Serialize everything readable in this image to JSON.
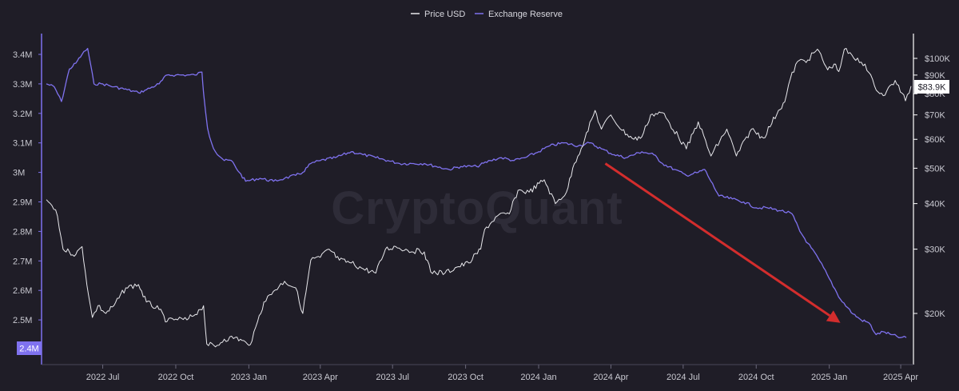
{
  "watermark": "CryptoQuant",
  "colors": {
    "background": "#1f1d27",
    "price_line": "#e8e8ec",
    "reserve_line": "#7f72ef",
    "arrow": "#d32d2d",
    "axis_left": "#7f72ef",
    "axis_right": "#ffffff"
  },
  "legend": {
    "price_label": "Price USD",
    "reserve_label": "Exchange Reserve"
  },
  "badges": {
    "reserve_current": "2.4M",
    "price_current": "$83.9K"
  },
  "chart_data": {
    "type": "line",
    "legend_position": "top-center",
    "grid": false,
    "x_ticks": [
      "2022 Jul",
      "2022 Oct",
      "2023 Jan",
      "2023 Apr",
      "2023 Jul",
      "2023 Oct",
      "2024 Jan",
      "2024 Apr",
      "2024 Jul",
      "2024 Oct",
      "2025 Jan",
      "2025 Apr"
    ],
    "x_range": [
      "2022-04-21",
      "2025-04-14"
    ],
    "y_left": {
      "label": "",
      "ticks": [
        "3.4M",
        "3.3M",
        "3.2M",
        "3.1M",
        "3M",
        "2.9M",
        "2.8M",
        "2.7M",
        "2.6M",
        "2.5M"
      ],
      "range": [
        2.4,
        3.45
      ]
    },
    "y_right": {
      "label": "",
      "scale": "log",
      "ticks": [
        "$100K",
        "$90K",
        "$80K",
        "$70K",
        "$60K",
        "$50K",
        "$40K",
        "$30K",
        "$20K"
      ],
      "range": [
        14000,
        112000
      ]
    },
    "series": [
      {
        "name": "Exchange Reserve",
        "axis": "left",
        "unit": "M BTC",
        "points": [
          [
            "2022-04-21",
            3.3
          ],
          [
            "2022-05-01",
            3.29
          ],
          [
            "2022-05-10",
            3.24
          ],
          [
            "2022-05-20",
            3.35
          ],
          [
            "2022-05-28",
            3.37
          ],
          [
            "2022-06-05",
            3.4
          ],
          [
            "2022-06-12",
            3.42
          ],
          [
            "2022-06-20",
            3.3
          ],
          [
            "2022-07-01",
            3.3
          ],
          [
            "2022-07-15",
            3.29
          ],
          [
            "2022-08-01",
            3.28
          ],
          [
            "2022-08-15",
            3.27
          ],
          [
            "2022-08-25",
            3.28
          ],
          [
            "2022-09-10",
            3.3
          ],
          [
            "2022-09-20",
            3.33
          ],
          [
            "2022-10-01",
            3.33
          ],
          [
            "2022-10-15",
            3.33
          ],
          [
            "2022-10-25",
            3.33
          ],
          [
            "2022-11-03",
            3.34
          ],
          [
            "2022-11-05",
            3.27
          ],
          [
            "2022-11-10",
            3.15
          ],
          [
            "2022-11-15",
            3.1
          ],
          [
            "2022-11-20",
            3.07
          ],
          [
            "2022-12-01",
            3.04
          ],
          [
            "2022-12-10",
            3.04
          ],
          [
            "2022-12-20",
            3.0
          ],
          [
            "2022-12-28",
            2.97
          ],
          [
            "2023-01-15",
            2.98
          ],
          [
            "2023-02-01",
            2.97
          ],
          [
            "2023-02-15",
            2.98
          ],
          [
            "2023-03-01",
            2.99
          ],
          [
            "2023-03-10",
            3.0
          ],
          [
            "2023-03-20",
            3.03
          ],
          [
            "2023-04-01",
            3.04
          ],
          [
            "2023-04-20",
            3.05
          ],
          [
            "2023-05-10",
            3.07
          ],
          [
            "2023-05-25",
            3.06
          ],
          [
            "2023-06-10",
            3.05
          ],
          [
            "2023-06-25",
            3.04
          ],
          [
            "2023-07-10",
            3.03
          ],
          [
            "2023-07-25",
            3.03
          ],
          [
            "2023-08-10",
            3.03
          ],
          [
            "2023-08-25",
            3.02
          ],
          [
            "2023-09-10",
            3.01
          ],
          [
            "2023-09-25",
            3.02
          ],
          [
            "2023-10-15",
            3.02
          ],
          [
            "2023-11-01",
            3.04
          ],
          [
            "2023-11-15",
            3.05
          ],
          [
            "2023-12-01",
            3.04
          ],
          [
            "2023-12-15",
            3.05
          ],
          [
            "2024-01-01",
            3.07
          ],
          [
            "2024-01-15",
            3.09
          ],
          [
            "2024-02-01",
            3.1
          ],
          [
            "2024-02-20",
            3.09
          ],
          [
            "2024-03-05",
            3.1
          ],
          [
            "2024-03-20",
            3.08
          ],
          [
            "2024-04-05",
            3.06
          ],
          [
            "2024-04-20",
            3.05
          ],
          [
            "2024-05-10",
            3.07
          ],
          [
            "2024-05-25",
            3.06
          ],
          [
            "2024-06-05",
            3.03
          ],
          [
            "2024-06-20",
            3.01
          ],
          [
            "2024-07-05",
            2.99
          ],
          [
            "2024-07-20",
            3.0
          ],
          [
            "2024-07-28",
            3.01
          ],
          [
            "2024-08-05",
            2.97
          ],
          [
            "2024-08-15",
            2.92
          ],
          [
            "2024-09-01",
            2.91
          ],
          [
            "2024-09-15",
            2.9
          ],
          [
            "2024-10-01",
            2.88
          ],
          [
            "2024-10-15",
            2.88
          ],
          [
            "2024-11-01",
            2.87
          ],
          [
            "2024-11-15",
            2.86
          ],
          [
            "2024-11-25",
            2.8
          ],
          [
            "2024-12-05",
            2.76
          ],
          [
            "2024-12-20",
            2.7
          ],
          [
            "2025-01-01",
            2.64
          ],
          [
            "2025-01-15",
            2.57
          ],
          [
            "2025-01-31",
            2.52
          ],
          [
            "2025-02-10",
            2.5
          ],
          [
            "2025-02-20",
            2.49
          ],
          [
            "2025-03-01",
            2.45
          ],
          [
            "2025-03-10",
            2.46
          ],
          [
            "2025-03-20",
            2.45
          ],
          [
            "2025-04-01",
            2.44
          ],
          [
            "2025-04-08",
            2.44
          ]
        ]
      },
      {
        "name": "Price USD",
        "axis": "right",
        "unit": "USD",
        "points": [
          [
            "2022-04-21",
            41000
          ],
          [
            "2022-04-28",
            39500
          ],
          [
            "2022-05-05",
            37000
          ],
          [
            "2022-05-12",
            30000
          ],
          [
            "2022-05-20",
            29500
          ],
          [
            "2022-05-28",
            29000
          ],
          [
            "2022-06-05",
            30500
          ],
          [
            "2022-06-13",
            22500
          ],
          [
            "2022-06-18",
            19500
          ],
          [
            "2022-06-25",
            21000
          ],
          [
            "2022-07-05",
            20000
          ],
          [
            "2022-07-15",
            21000
          ],
          [
            "2022-07-30",
            23500
          ],
          [
            "2022-08-15",
            24000
          ],
          [
            "2022-08-25",
            21500
          ],
          [
            "2022-09-10",
            20500
          ],
          [
            "2022-09-20",
            19000
          ],
          [
            "2022-10-01",
            19300
          ],
          [
            "2022-10-15",
            19200
          ],
          [
            "2022-11-01",
            20500
          ],
          [
            "2022-11-05",
            21000
          ],
          [
            "2022-11-09",
            16500
          ],
          [
            "2022-11-20",
            16200
          ],
          [
            "2022-12-01",
            17000
          ],
          [
            "2022-12-15",
            17200
          ],
          [
            "2022-12-30",
            16500
          ],
          [
            "2023-01-05",
            16800
          ],
          [
            "2023-01-12",
            19000
          ],
          [
            "2023-01-20",
            21500
          ],
          [
            "2023-02-01",
            23000
          ],
          [
            "2023-02-15",
            24500
          ],
          [
            "2023-03-01",
            23500
          ],
          [
            "2023-03-10",
            20000
          ],
          [
            "2023-03-20",
            28000
          ],
          [
            "2023-04-01",
            28500
          ],
          [
            "2023-04-12",
            30000
          ],
          [
            "2023-04-25",
            28000
          ],
          [
            "2023-05-10",
            27500
          ],
          [
            "2023-05-25",
            26500
          ],
          [
            "2023-06-10",
            25800
          ],
          [
            "2023-06-22",
            30000
          ],
          [
            "2023-07-05",
            30500
          ],
          [
            "2023-07-20",
            29800
          ],
          [
            "2023-08-10",
            29500
          ],
          [
            "2023-08-18",
            26000
          ],
          [
            "2023-09-05",
            25800
          ],
          [
            "2023-09-20",
            26800
          ],
          [
            "2023-10-05",
            27500
          ],
          [
            "2023-10-20",
            30000
          ],
          [
            "2023-10-25",
            34000
          ],
          [
            "2023-11-10",
            37000
          ],
          [
            "2023-11-25",
            37500
          ],
          [
            "2023-12-06",
            43500
          ],
          [
            "2023-12-20",
            43000
          ],
          [
            "2024-01-08",
            46500
          ],
          [
            "2024-01-22",
            40000
          ],
          [
            "2024-02-05",
            43000
          ],
          [
            "2024-02-15",
            51500
          ],
          [
            "2024-02-28",
            60000
          ],
          [
            "2024-03-12",
            72000
          ],
          [
            "2024-03-20",
            64000
          ],
          [
            "2024-04-01",
            70000
          ],
          [
            "2024-04-15",
            63500
          ],
          [
            "2024-04-30",
            60000
          ],
          [
            "2024-05-10",
            61000
          ],
          [
            "2024-05-21",
            70000
          ],
          [
            "2024-06-05",
            71000
          ],
          [
            "2024-06-25",
            61000
          ],
          [
            "2024-07-05",
            56500
          ],
          [
            "2024-07-20",
            67000
          ],
          [
            "2024-08-05",
            54000
          ],
          [
            "2024-08-25",
            64000
          ],
          [
            "2024-09-06",
            54000
          ],
          [
            "2024-09-25",
            64000
          ],
          [
            "2024-10-10",
            60500
          ],
          [
            "2024-10-29",
            72000
          ],
          [
            "2024-11-06",
            76000
          ],
          [
            "2024-11-13",
            88000
          ],
          [
            "2024-11-22",
            98000
          ],
          [
            "2024-12-05",
            99000
          ],
          [
            "2024-12-17",
            106000
          ],
          [
            "2024-12-30",
            93000
          ],
          [
            "2025-01-07",
            96500
          ],
          [
            "2025-01-13",
            92000
          ],
          [
            "2025-01-20",
            106000
          ],
          [
            "2025-02-01",
            100000
          ],
          [
            "2025-02-15",
            96500
          ],
          [
            "2025-02-27",
            84000
          ],
          [
            "2025-03-10",
            79000
          ],
          [
            "2025-03-25",
            87000
          ],
          [
            "2025-04-07",
            76500
          ],
          [
            "2025-04-14",
            83900
          ]
        ]
      }
    ],
    "annotations": [
      {
        "type": "arrow",
        "from": [
          "2024-03-25",
          3.03
        ],
        "to": [
          "2025-01-15",
          2.49
        ],
        "color": "#d32d2d"
      }
    ]
  }
}
